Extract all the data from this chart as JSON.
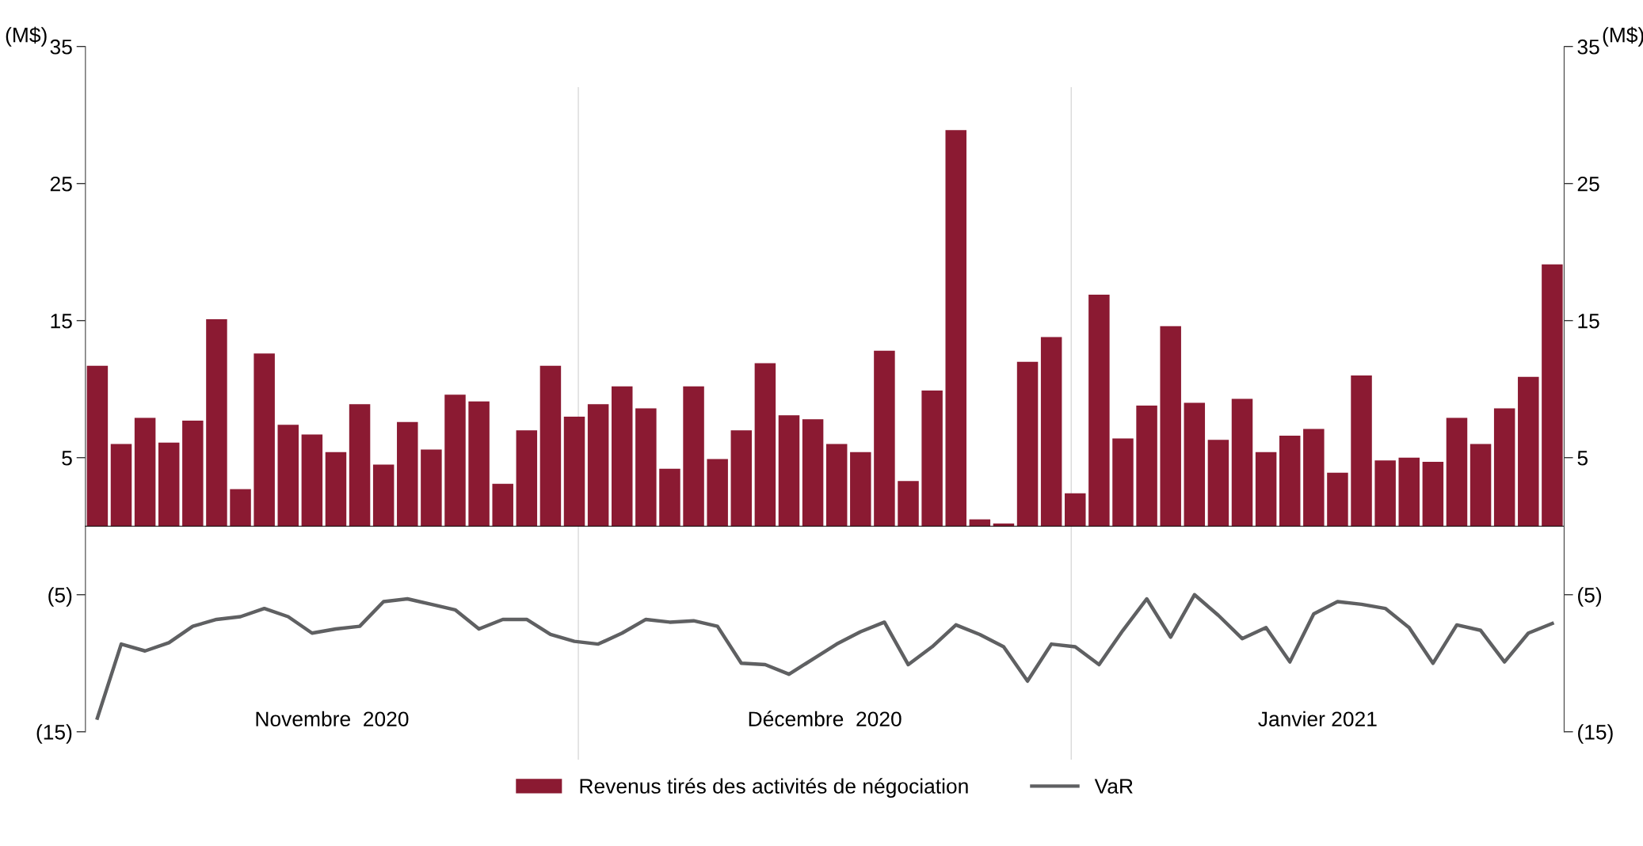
{
  "chart_data": {
    "type": "bar",
    "ylabel": "(M$)",
    "y2label": "(M$)",
    "categories": [
      null,
      null,
      null,
      null,
      null,
      null,
      null,
      null,
      null,
      null,
      null,
      null,
      null,
      null,
      null,
      null,
      null,
      null,
      null,
      null,
      null,
      null,
      null,
      null,
      null,
      null,
      null,
      null,
      null,
      null,
      null,
      null,
      null,
      null,
      null,
      null,
      null,
      null,
      null,
      null,
      null,
      null,
      null,
      null,
      null,
      null,
      null,
      null,
      null,
      null,
      null,
      null,
      null,
      null,
      null,
      null,
      null,
      null,
      null,
      null,
      null,
      null
    ],
    "series": [
      {
        "name": "Revenus tirés des activités de négociation",
        "color": "#8b1a32",
        "values": [
          11.7,
          6.0,
          7.9,
          6.1,
          7.7,
          15.1,
          2.7,
          12.6,
          7.4,
          6.7,
          5.4,
          8.9,
          4.5,
          7.6,
          5.6,
          9.6,
          9.1,
          3.1,
          7.0,
          11.7,
          8.0,
          8.9,
          10.2,
          8.6,
          4.2,
          10.2,
          4.9,
          7.0,
          11.9,
          8.1,
          7.8,
          6.0,
          5.4,
          12.8,
          3.3,
          9.9,
          28.9,
          0.5,
          0.2,
          12.0,
          13.8,
          2.4,
          16.9,
          6.4,
          8.8,
          14.6,
          9.0,
          6.3,
          9.3,
          5.4,
          6.6,
          7.1,
          3.9,
          11.0,
          4.8,
          5.0,
          4.7,
          7.9,
          6.0,
          8.6,
          10.9,
          19.1
        ]
      },
      {
        "name": "VaR",
        "type": "line",
        "color": "#5f6062",
        "values": [
          -14.0,
          -8.6,
          -9.1,
          -8.5,
          -7.3,
          -6.8,
          -6.6,
          -6.0,
          -6.6,
          -7.8,
          -7.5,
          -7.3,
          -5.5,
          -5.3,
          -5.7,
          -6.1,
          -7.5,
          -6.8,
          -6.8,
          -7.9,
          -8.4,
          -8.6,
          -7.8,
          -6.8,
          -7.0,
          -6.9,
          -7.3,
          -10.0,
          -10.1,
          -10.8,
          -9.7,
          -8.6,
          -7.7,
          -7.0,
          -10.1,
          -8.8,
          -7.2,
          -7.9,
          -8.8,
          -11.3,
          -8.6,
          -8.8,
          -10.1,
          -7.6,
          -5.3,
          -8.1,
          -5.0,
          -6.5,
          -8.2,
          -7.4,
          -9.9,
          -6.4,
          -5.5,
          -5.7,
          -6.0,
          -7.4,
          -10.0,
          -7.2,
          -7.6,
          -9.9,
          -7.8,
          -7.1
        ]
      }
    ],
    "ylim": [
      -15,
      35
    ],
    "yticks": [
      {
        "value": -15,
        "label": "(15)"
      },
      {
        "value": -5,
        "label": "(5)"
      },
      5,
      15,
      25,
      35
    ],
    "y2lim": [
      -15,
      35
    ],
    "y2ticks": [
      {
        "value": -15,
        "label": "(15)"
      },
      {
        "value": -5,
        "label": "(5)"
      },
      5,
      15,
      25,
      35
    ],
    "annotations": [
      "Novembre  2020",
      "Décembre  2020",
      "Janvier 2021"
    ],
    "legend": "bottom",
    "grid": false,
    "marker": "none",
    "line_style": "solid"
  }
}
